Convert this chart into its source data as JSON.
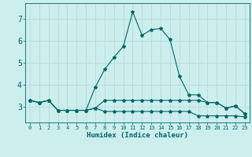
{
  "xlabel": "Humidex (Indice chaleur)",
  "bg_color": "#cceeed",
  "grid_color": "#b8dedd",
  "line_color": "#006666",
  "x_values": [
    0,
    1,
    2,
    3,
    4,
    5,
    6,
    7,
    8,
    9,
    10,
    11,
    12,
    13,
    14,
    15,
    16,
    17,
    18,
    19,
    20,
    21,
    22,
    23
  ],
  "series1": [
    3.3,
    3.2,
    3.3,
    2.85,
    2.85,
    2.85,
    2.85,
    3.9,
    4.7,
    5.25,
    5.75,
    7.3,
    6.25,
    6.5,
    6.55,
    6.05,
    4.4,
    3.55,
    3.55,
    3.2,
    3.2,
    2.95,
    3.05,
    2.7
  ],
  "series2": [
    3.3,
    3.2,
    3.3,
    2.85,
    2.85,
    2.85,
    2.85,
    2.95,
    3.3,
    3.3,
    3.3,
    3.3,
    3.3,
    3.3,
    3.3,
    3.3,
    3.3,
    3.3,
    3.3,
    3.2,
    3.2,
    2.95,
    3.05,
    2.7
  ],
  "series3": [
    3.3,
    3.2,
    3.3,
    2.85,
    2.85,
    2.85,
    2.85,
    2.95,
    2.8,
    2.8,
    2.8,
    2.8,
    2.8,
    2.8,
    2.8,
    2.8,
    2.8,
    2.8,
    2.6,
    2.6,
    2.6,
    2.6,
    2.6,
    2.55
  ],
  "ylim": [
    2.3,
    7.7
  ],
  "xlim": [
    -0.5,
    23.5
  ],
  "yticks": [
    3,
    4,
    5,
    6,
    7
  ],
  "xticks": [
    0,
    1,
    2,
    3,
    4,
    5,
    6,
    7,
    8,
    9,
    10,
    11,
    12,
    13,
    14,
    15,
    16,
    17,
    18,
    19,
    20,
    21,
    22,
    23
  ],
  "xtick_labels": [
    "0",
    "1",
    "2",
    "3",
    "4",
    "5",
    "6",
    "7",
    "8",
    "9",
    "10",
    "11",
    "12",
    "13",
    "14",
    "15",
    "16",
    "17",
    "18",
    "19",
    "20",
    "21",
    "22",
    "23"
  ]
}
